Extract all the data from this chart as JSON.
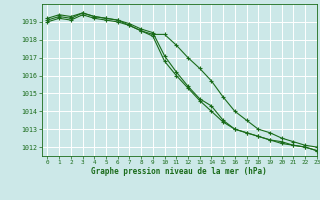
{
  "title": "Graphe pression niveau de la mer (hPa)",
  "bg_color": "#cce8e8",
  "grid_color": "#ffffff",
  "line_color": "#1a6b1a",
  "xlim": [
    -0.5,
    23
  ],
  "ylim": [
    1011.5,
    1020.0
  ],
  "yticks": [
    1012,
    1013,
    1014,
    1015,
    1016,
    1017,
    1018,
    1019
  ],
  "xticks": [
    0,
    1,
    2,
    3,
    4,
    5,
    6,
    7,
    8,
    9,
    10,
    11,
    12,
    13,
    14,
    15,
    16,
    17,
    18,
    19,
    20,
    21,
    22,
    23
  ],
  "series": [
    [
      1019.2,
      1019.4,
      1019.3,
      1019.5,
      1019.3,
      1019.2,
      1019.1,
      1018.8,
      1018.5,
      1018.3,
      1018.3,
      1017.7,
      1017.0,
      1016.4,
      1015.7,
      1014.8,
      1014.0,
      1013.5,
      1013.0,
      1012.8,
      1012.5,
      1012.3,
      1012.1,
      1012.0
    ],
    [
      1019.1,
      1019.3,
      1019.2,
      1019.5,
      1019.3,
      1019.2,
      1019.1,
      1018.9,
      1018.6,
      1018.4,
      1017.1,
      1016.2,
      1015.4,
      1014.7,
      1014.3,
      1013.5,
      1013.0,
      1012.8,
      1012.6,
      1012.4,
      1012.2,
      1012.1,
      1012.0,
      1011.8
    ],
    [
      1019.0,
      1019.2,
      1019.1,
      1019.4,
      1019.2,
      1019.1,
      1019.0,
      1018.8,
      1018.5,
      1018.2,
      1016.8,
      1016.0,
      1015.3,
      1014.6,
      1014.0,
      1013.4,
      1013.0,
      1012.8,
      1012.6,
      1012.4,
      1012.3,
      1012.1,
      1012.0,
      1011.8
    ]
  ]
}
